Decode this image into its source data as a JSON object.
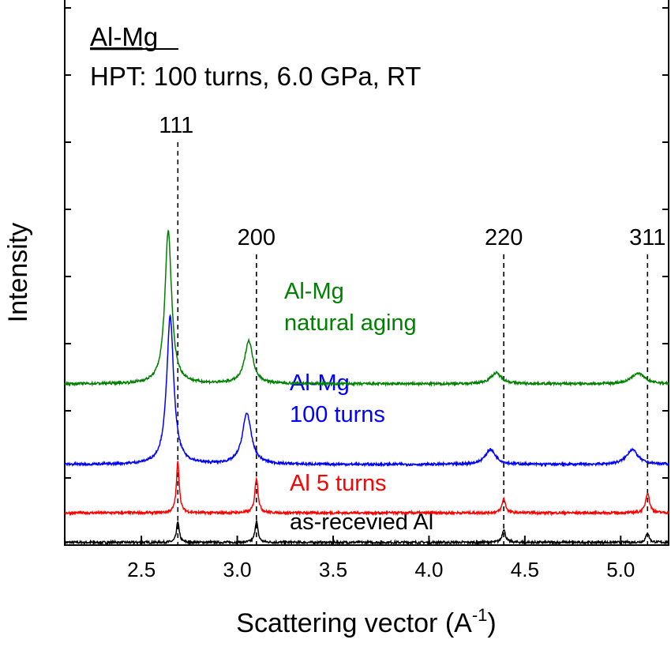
{
  "chart_data": {
    "type": "line",
    "title": "Al-Mg",
    "subtitle": "HPT: 100 turns, 6.0 GPa, RT",
    "xlabel": "Scattering vector (A",
    "xlabel_sup": "-1",
    "xlabel_end": ")",
    "ylabel": "Intensity",
    "xlim": [
      2.1,
      5.25
    ],
    "ylim": [
      0,
      100
    ],
    "xticks": [
      "2.5",
      "3.0",
      "3.5",
      "4.0",
      "4.5",
      "5.0"
    ],
    "xtick_values": [
      2.5,
      3.0,
      3.5,
      4.0,
      4.5,
      5.0
    ],
    "ytick_labels": "none",
    "grid": false,
    "reflections": [
      {
        "label": "111",
        "x": 2.69
      },
      {
        "label": "200",
        "x": 3.1
      },
      {
        "label": "220",
        "x": 4.39
      },
      {
        "label": "311",
        "x": 5.14
      }
    ],
    "series": [
      {
        "name": "as-recevied Al",
        "color": "#000000",
        "baseline": 0.5,
        "peaks": [
          {
            "x": 2.69,
            "height": 4.0,
            "width": 0.008
          },
          {
            "x": 3.1,
            "height": 4.0,
            "width": 0.009
          },
          {
            "x": 4.39,
            "height": 2.5,
            "width": 0.01
          },
          {
            "x": 5.14,
            "height": 1.8,
            "width": 0.01
          }
        ]
      },
      {
        "name": "Al 5 turns",
        "color": "#ff0000",
        "baseline": 6.0,
        "peaks": [
          {
            "x": 2.69,
            "height": 9.5,
            "width": 0.009
          },
          {
            "x": 3.1,
            "height": 6.5,
            "width": 0.01
          },
          {
            "x": 4.39,
            "height": 2.6,
            "width": 0.011
          },
          {
            "x": 5.14,
            "height": 3.8,
            "width": 0.012
          }
        ]
      },
      {
        "name": "Al-Mg",
        "name_line2": "100 turns",
        "color": "#0000ff",
        "baseline": 15.0,
        "peaks": [
          {
            "x": 2.65,
            "height": 27.5,
            "width": 0.022
          },
          {
            "x": 3.05,
            "height": 9.5,
            "width": 0.028
          },
          {
            "x": 4.32,
            "height": 2.8,
            "width": 0.032
          },
          {
            "x": 5.06,
            "height": 2.8,
            "width": 0.035
          }
        ]
      },
      {
        "name": "Al-Mg",
        "name_line2": "natural aging",
        "color": "#008000",
        "baseline": 30.0,
        "peaks": [
          {
            "x": 2.64,
            "height": 28.5,
            "width": 0.021
          },
          {
            "x": 3.06,
            "height": 8.0,
            "width": 0.026
          },
          {
            "x": 4.35,
            "height": 2.0,
            "width": 0.035
          },
          {
            "x": 5.09,
            "height": 2.0,
            "width": 0.04
          }
        ]
      }
    ]
  }
}
